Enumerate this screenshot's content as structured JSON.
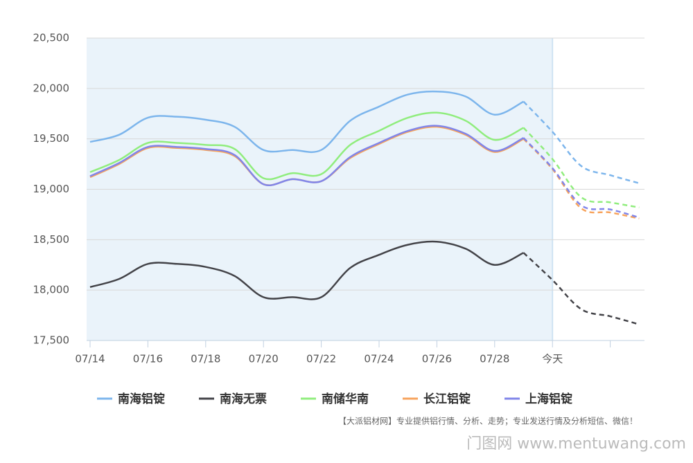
{
  "chart_data": {
    "type": "line",
    "categories": [
      "07/14",
      null,
      "07/16",
      null,
      "07/18",
      null,
      "07/20",
      null,
      "07/22",
      null,
      "07/24",
      null,
      "07/26",
      null,
      "07/28",
      null,
      "今天",
      null,
      null,
      null
    ],
    "series": [
      {
        "name": "南海铝锭",
        "color": "#7cb5ec",
        "values": [
          19470,
          19540,
          19710,
          19720,
          19690,
          19620,
          19390,
          19390,
          19390,
          19680,
          19820,
          19940,
          19970,
          19920,
          19740,
          19870,
          19570,
          19230,
          19140,
          19060
        ]
      },
      {
        "name": "南海无票",
        "color": "#434348",
        "values": [
          18030,
          18110,
          18260,
          18260,
          18230,
          18140,
          17930,
          17930,
          17930,
          18220,
          18350,
          18450,
          18480,
          18410,
          18250,
          18370,
          18100,
          17810,
          17740,
          17660
        ]
      },
      {
        "name": "南储华南",
        "color": "#90ed7d",
        "values": [
          19170,
          19290,
          19460,
          19460,
          19440,
          19400,
          19110,
          19160,
          19150,
          19440,
          19580,
          19710,
          19760,
          19680,
          19490,
          19610,
          19300,
          18920,
          18870,
          18820
        ]
      },
      {
        "name": "长江铝锭",
        "color": "#f7a35c",
        "values": [
          19120,
          19250,
          19410,
          19410,
          19390,
          19330,
          19050,
          19100,
          19080,
          19310,
          19450,
          19570,
          19620,
          19540,
          19370,
          19500,
          19200,
          18810,
          18770,
          18710
        ]
      },
      {
        "name": "上海铝锭",
        "color": "#8085e9",
        "values": [
          19130,
          19260,
          19420,
          19420,
          19400,
          19340,
          19050,
          19100,
          19080,
          19320,
          19460,
          19580,
          19630,
          19550,
          19380,
          19510,
          19210,
          18840,
          18800,
          18720
        ]
      }
    ],
    "ylim": [
      17500,
      20500
    ],
    "yticks": [
      {
        "value": 17500,
        "label": "17,500"
      },
      {
        "value": 18000,
        "label": "18,000"
      },
      {
        "value": 18500,
        "label": "18,500"
      },
      {
        "value": 19000,
        "label": "19,000"
      },
      {
        "value": 19500,
        "label": "19,500"
      },
      {
        "value": 20000,
        "label": "20,000"
      },
      {
        "value": 20500,
        "label": "20,500"
      }
    ],
    "grid": true,
    "footnote": "【大派铝材网】专业提供铝行情、分析、走势；专业发送行情及分析短信、微信！",
    "watermark": "门图网 www.mentuwang.com"
  }
}
